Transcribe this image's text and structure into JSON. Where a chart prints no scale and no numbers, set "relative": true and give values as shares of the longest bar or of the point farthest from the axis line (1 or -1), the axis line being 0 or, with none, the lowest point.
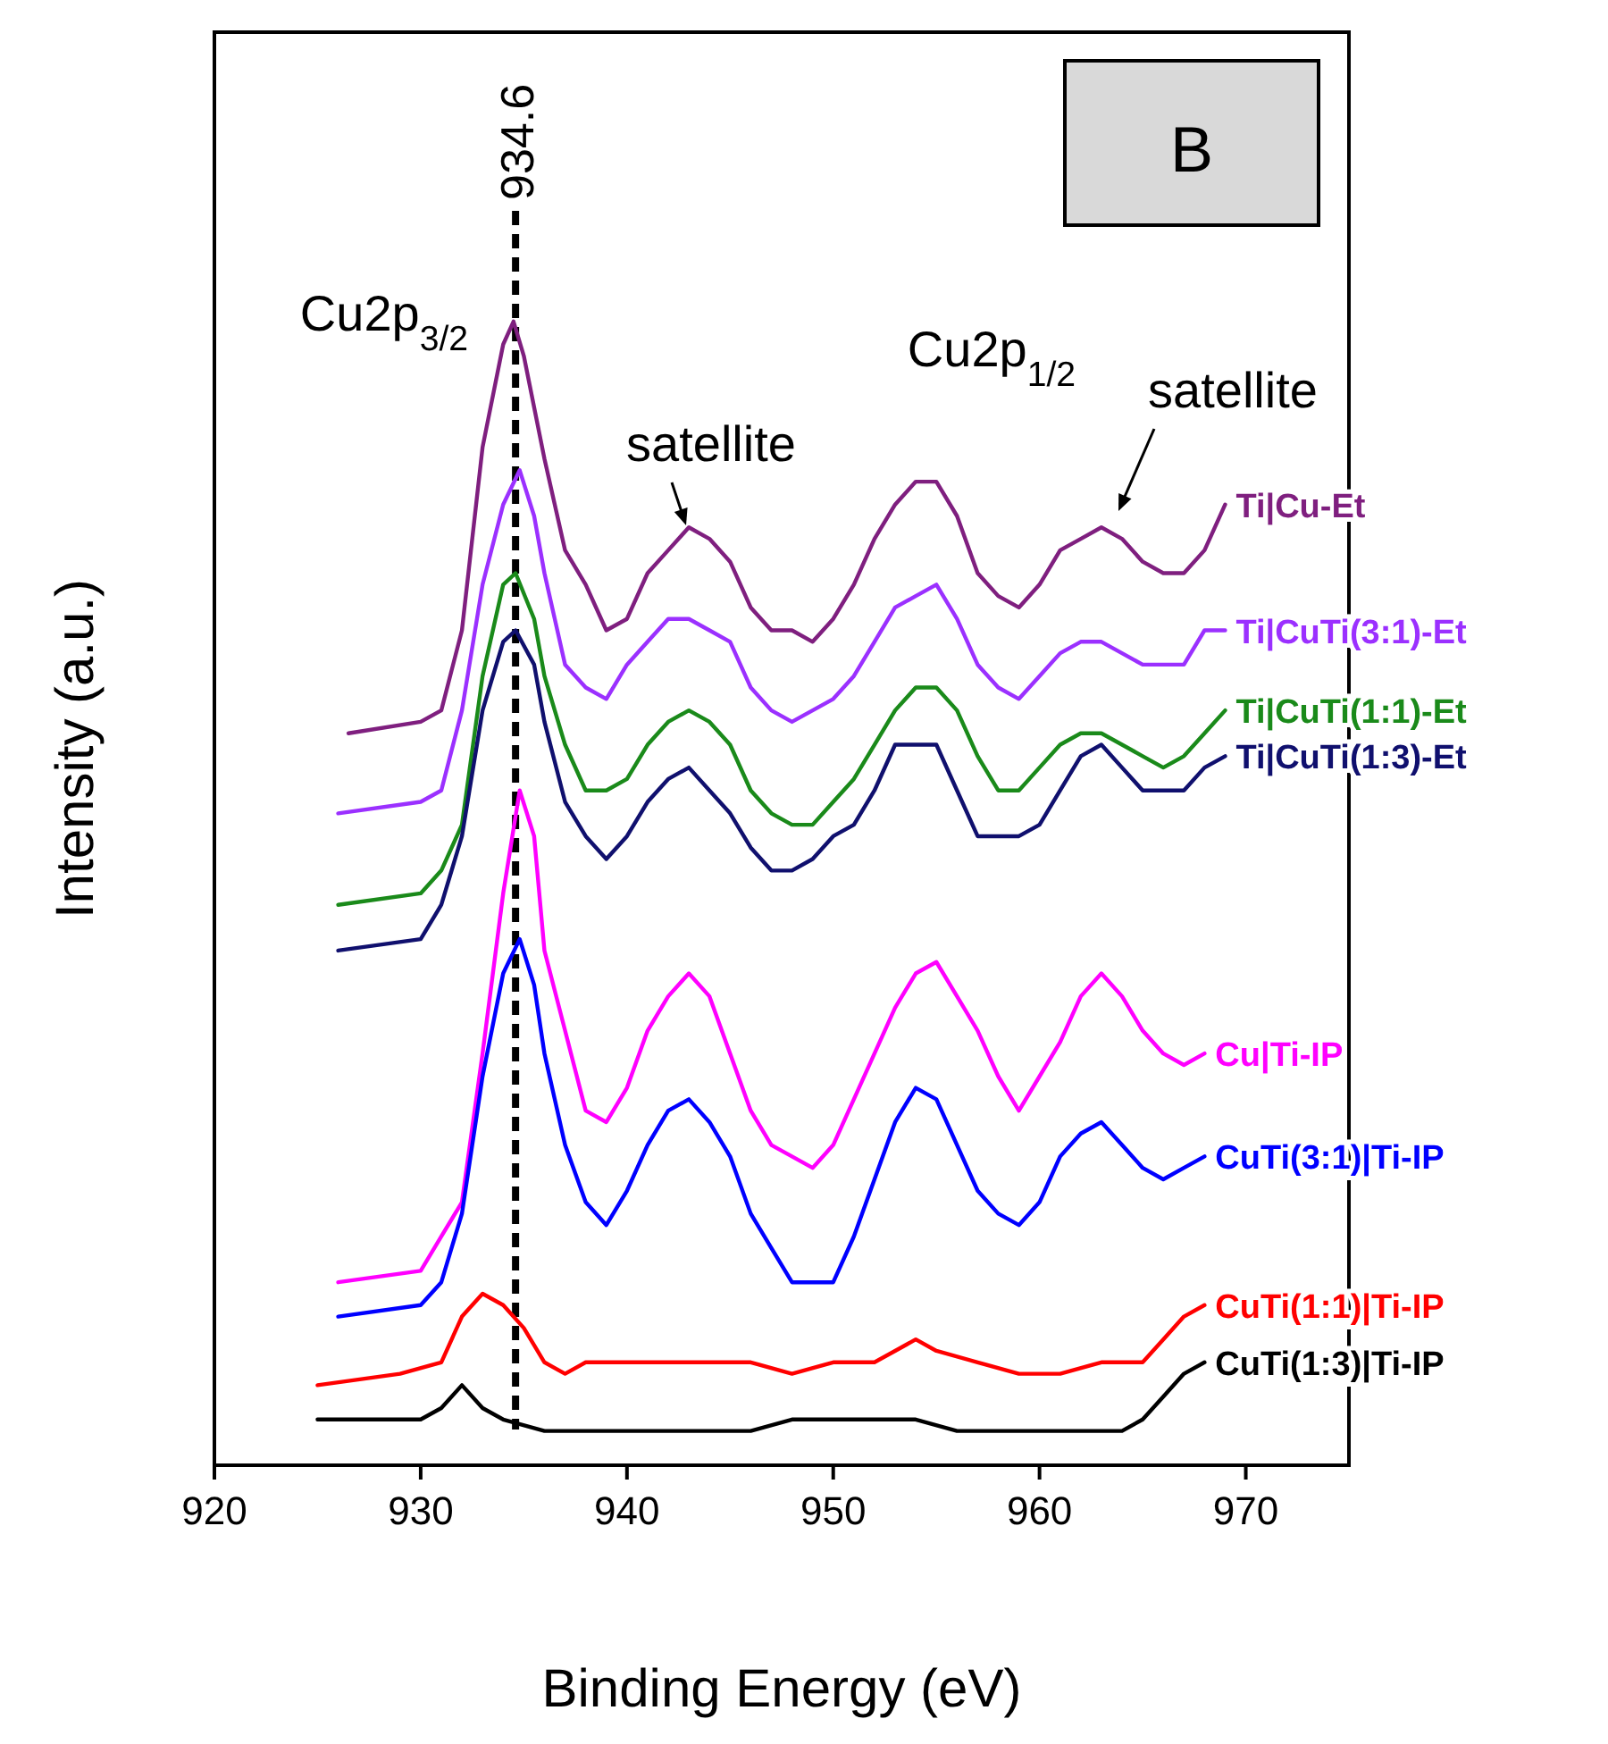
{
  "chart_data": {
    "type": "line",
    "relative": true,
    "xlabel": "Binding Energy (eV)",
    "ylabel": "Intensity (a.u.)",
    "xlim": [
      920,
      975
    ],
    "xticks": [
      920,
      930,
      940,
      950,
      960,
      970
    ],
    "legend": false,
    "grid": false,
    "marker": "none",
    "line_style": "solid",
    "ref_lines": [
      {
        "axis": "x",
        "value": 934.6,
        "label": "934.6",
        "color": "#000000",
        "line_style": "dashed"
      }
    ],
    "annotations": [
      "Cu2p$_{3/2}$",
      "satellite",
      "Cu2p$_{1/2}$",
      "satellite",
      "B"
    ],
    "series": [
      {
        "name": "Ti|Cu-Et",
        "color": "#7f1f7f",
        "x": [
          926.5,
          930,
          931,
          932,
          933,
          934,
          934.5,
          935,
          936,
          937,
          938,
          939,
          940,
          941,
          942,
          943,
          944,
          945,
          946,
          947,
          948,
          949,
          950,
          951,
          952,
          953,
          954,
          955,
          956,
          957,
          958,
          959,
          960,
          961,
          962,
          963,
          964,
          965,
          966,
          967,
          968,
          969
        ],
        "values": [
          0.64,
          0.65,
          0.66,
          0.73,
          0.89,
          0.98,
          1.0,
          0.97,
          0.88,
          0.8,
          0.77,
          0.73,
          0.74,
          0.78,
          0.8,
          0.82,
          0.81,
          0.79,
          0.75,
          0.73,
          0.73,
          0.72,
          0.74,
          0.77,
          0.81,
          0.84,
          0.86,
          0.86,
          0.83,
          0.78,
          0.76,
          0.75,
          0.77,
          0.8,
          0.81,
          0.82,
          0.81,
          0.79,
          0.78,
          0.78,
          0.8,
          0.84
        ]
      },
      {
        "name": "Ti|CuTi(3:1)-Et",
        "color": "#9b30ff",
        "x": [
          926,
          930,
          931,
          932,
          933,
          934,
          934.8,
          935.5,
          936,
          937,
          938,
          939,
          940,
          941,
          942,
          943,
          944,
          945,
          946,
          947,
          948,
          949,
          950,
          951,
          952,
          953,
          954,
          955,
          956,
          957,
          958,
          959,
          960,
          961,
          962,
          963,
          964,
          965,
          966,
          967,
          968,
          969
        ],
        "values": [
          0.57,
          0.58,
          0.59,
          0.66,
          0.77,
          0.84,
          0.87,
          0.83,
          0.78,
          0.7,
          0.68,
          0.67,
          0.7,
          0.72,
          0.74,
          0.74,
          0.73,
          0.72,
          0.68,
          0.66,
          0.65,
          0.66,
          0.67,
          0.69,
          0.72,
          0.75,
          0.76,
          0.77,
          0.74,
          0.7,
          0.68,
          0.67,
          0.69,
          0.71,
          0.72,
          0.72,
          0.71,
          0.7,
          0.7,
          0.7,
          0.73,
          0.73
        ]
      },
      {
        "name": "Ti|CuTi(1:1)-Et",
        "color": "#1a8a1a",
        "x": [
          926,
          930,
          931,
          932,
          933,
          934,
          934.6,
          935.5,
          936,
          937,
          938,
          939,
          940,
          941,
          942,
          943,
          944,
          945,
          946,
          947,
          948,
          949,
          950,
          951,
          952,
          953,
          954,
          955,
          956,
          957,
          958,
          959,
          960,
          961,
          962,
          963,
          964,
          965,
          966,
          967,
          968,
          969
        ],
        "values": [
          0.49,
          0.5,
          0.52,
          0.56,
          0.69,
          0.77,
          0.78,
          0.74,
          0.69,
          0.63,
          0.59,
          0.59,
          0.6,
          0.63,
          0.65,
          0.66,
          0.65,
          0.63,
          0.59,
          0.57,
          0.56,
          0.56,
          0.58,
          0.6,
          0.63,
          0.66,
          0.68,
          0.68,
          0.66,
          0.62,
          0.59,
          0.59,
          0.61,
          0.63,
          0.64,
          0.64,
          0.63,
          0.62,
          0.61,
          0.62,
          0.64,
          0.66
        ]
      },
      {
        "name": "Ti|CuTi(1:3)-Et",
        "color": "#10106e",
        "x": [
          926,
          930,
          931,
          932,
          933,
          934,
          934.6,
          935.5,
          936,
          937,
          938,
          939,
          940,
          941,
          942,
          943,
          944,
          945,
          946,
          947,
          948,
          949,
          950,
          951,
          952,
          953,
          954,
          955,
          956,
          957,
          958,
          959,
          960,
          961,
          962,
          963,
          964,
          965,
          966,
          967,
          968,
          969
        ],
        "values": [
          0.45,
          0.46,
          0.49,
          0.55,
          0.66,
          0.72,
          0.73,
          0.7,
          0.65,
          0.58,
          0.55,
          0.53,
          0.55,
          0.58,
          0.6,
          0.61,
          0.59,
          0.57,
          0.54,
          0.52,
          0.52,
          0.53,
          0.55,
          0.56,
          0.59,
          0.63,
          0.63,
          0.63,
          0.59,
          0.55,
          0.55,
          0.55,
          0.56,
          0.59,
          0.62,
          0.63,
          0.61,
          0.59,
          0.59,
          0.59,
          0.61,
          0.62
        ]
      },
      {
        "name": "Cu|Ti-IP",
        "color": "#ff00ff",
        "x": [
          926,
          930,
          931,
          932,
          933,
          934,
          934.8,
          935.5,
          936,
          937,
          938,
          939,
          940,
          941,
          942,
          943,
          944,
          945,
          946,
          947,
          948,
          949,
          950,
          951,
          952,
          953,
          954,
          955,
          956,
          957,
          958,
          959,
          960,
          961,
          962,
          963,
          964,
          965,
          966,
          967,
          968
        ],
        "values": [
          0.16,
          0.17,
          0.2,
          0.23,
          0.36,
          0.5,
          0.59,
          0.55,
          0.45,
          0.38,
          0.31,
          0.3,
          0.33,
          0.38,
          0.41,
          0.43,
          0.41,
          0.36,
          0.31,
          0.28,
          0.27,
          0.26,
          0.28,
          0.32,
          0.36,
          0.4,
          0.43,
          0.44,
          0.41,
          0.38,
          0.34,
          0.31,
          0.34,
          0.37,
          0.41,
          0.43,
          0.41,
          0.38,
          0.36,
          0.35,
          0.36
        ]
      },
      {
        "name": "CuTi(3:1)|Ti-IP",
        "color": "#0000ff",
        "x": [
          926,
          930,
          931,
          932,
          933,
          934,
          934.8,
          935.5,
          936,
          937,
          938,
          939,
          940,
          941,
          942,
          943,
          944,
          945,
          946,
          947,
          948,
          949,
          950,
          951,
          952,
          953,
          954,
          955,
          956,
          957,
          958,
          959,
          960,
          961,
          962,
          963,
          964,
          965,
          966,
          967,
          968
        ],
        "values": [
          0.13,
          0.14,
          0.16,
          0.22,
          0.34,
          0.43,
          0.46,
          0.42,
          0.36,
          0.28,
          0.23,
          0.21,
          0.24,
          0.28,
          0.31,
          0.32,
          0.3,
          0.27,
          0.22,
          0.19,
          0.16,
          0.16,
          0.16,
          0.2,
          0.25,
          0.3,
          0.33,
          0.32,
          0.28,
          0.24,
          0.22,
          0.21,
          0.23,
          0.27,
          0.29,
          0.3,
          0.28,
          0.26,
          0.25,
          0.26,
          0.27
        ]
      },
      {
        "name": "CuTi(1:1)|Ti-IP",
        "color": "#ff0000",
        "x": [
          925,
          929,
          931,
          932,
          933,
          934,
          935,
          936,
          937,
          938,
          940,
          942,
          944,
          946,
          948,
          950,
          952,
          953,
          954,
          955,
          957,
          959,
          961,
          963,
          965,
          966,
          967,
          968
        ],
        "values": [
          0.07,
          0.08,
          0.09,
          0.13,
          0.15,
          0.14,
          0.12,
          0.09,
          0.08,
          0.09,
          0.09,
          0.09,
          0.09,
          0.09,
          0.08,
          0.09,
          0.09,
          0.1,
          0.11,
          0.1,
          0.09,
          0.08,
          0.08,
          0.09,
          0.09,
          0.11,
          0.13,
          0.14
        ]
      },
      {
        "name": "CuTi(1:3)|Ti-IP",
        "color": "#000000",
        "x": [
          925,
          928,
          930,
          931,
          932,
          933,
          934,
          936,
          938,
          940,
          943,
          946,
          948,
          950,
          952,
          954,
          956,
          958,
          960,
          962,
          964,
          965,
          966,
          967,
          968
        ],
        "values": [
          0.04,
          0.04,
          0.04,
          0.05,
          0.07,
          0.05,
          0.04,
          0.03,
          0.03,
          0.03,
          0.03,
          0.03,
          0.04,
          0.04,
          0.04,
          0.04,
          0.03,
          0.03,
          0.03,
          0.03,
          0.03,
          0.04,
          0.06,
          0.08,
          0.09
        ]
      }
    ]
  }
}
